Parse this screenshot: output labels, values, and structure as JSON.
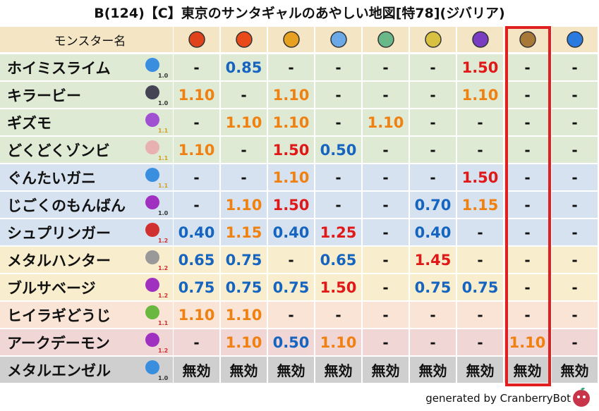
{
  "title": "B(124)【C】東京のサンタギャルのあやしい地図[特78](ジバリア)",
  "header": {
    "name_column": "モンスター名"
  },
  "table": {
    "rows": [
      {
        "name": "ホイミスライム",
        "level": "1.0",
        "values": [
          "-",
          "0.85",
          "-",
          "-",
          "-",
          "-",
          "1.50",
          "-",
          "-"
        ]
      },
      {
        "name": "キラービー",
        "level": "1.0",
        "values": [
          "1.10",
          "-",
          "1.10",
          "-",
          "-",
          "-",
          "1.10",
          "-",
          "-"
        ]
      },
      {
        "name": "ギズモ",
        "level": "1.1",
        "values": [
          "-",
          "1.10",
          "1.10",
          "-",
          "1.10",
          "-",
          "-",
          "-",
          "-"
        ]
      },
      {
        "name": "どくどくゾンビ",
        "level": "1.1",
        "values": [
          "1.10",
          "-",
          "1.50",
          "0.50",
          "-",
          "-",
          "-",
          "-",
          "-"
        ]
      },
      {
        "name": "ぐんたいガニ",
        "level": "1.1",
        "values": [
          "-",
          "-",
          "1.10",
          "-",
          "-",
          "-",
          "1.50",
          "-",
          "-"
        ]
      },
      {
        "name": "じごくのもんばん",
        "level": "1.0",
        "values": [
          "-",
          "1.10",
          "1.50",
          "-",
          "-",
          "0.70",
          "1.15",
          "-",
          "-"
        ]
      },
      {
        "name": "シュプリンガー",
        "level": "1.2",
        "values": [
          "0.40",
          "1.15",
          "0.40",
          "1.25",
          "-",
          "0.40",
          "-",
          "-",
          "-"
        ]
      },
      {
        "name": "メタルハンター",
        "level": "1.2",
        "values": [
          "0.65",
          "0.75",
          "-",
          "0.65",
          "-",
          "1.45",
          "-",
          "-",
          "-"
        ]
      },
      {
        "name": "ブルサベージ",
        "level": "1.2",
        "values": [
          "0.75",
          "0.75",
          "0.75",
          "1.50",
          "-",
          "0.75",
          "0.75",
          "-",
          "-"
        ]
      },
      {
        "name": "ヒイラギどうじ",
        "level": "1.1",
        "values": [
          "1.10",
          "1.10",
          "-",
          "-",
          "-",
          "-",
          "-",
          "-",
          "-"
        ]
      },
      {
        "name": "アークデーモン",
        "level": "1.2",
        "values": [
          "-",
          "1.10",
          "0.50",
          "1.10",
          "-",
          "-",
          "-",
          "1.10",
          "-"
        ]
      },
      {
        "name": "メタルエンゼル",
        "level": "1.0",
        "values": [
          "無効",
          "無効",
          "無効",
          "無効",
          "無効",
          "無効",
          "無効",
          "無効",
          "無効"
        ]
      }
    ]
  },
  "footer": {
    "credit": "generated by CranberryBot"
  }
}
